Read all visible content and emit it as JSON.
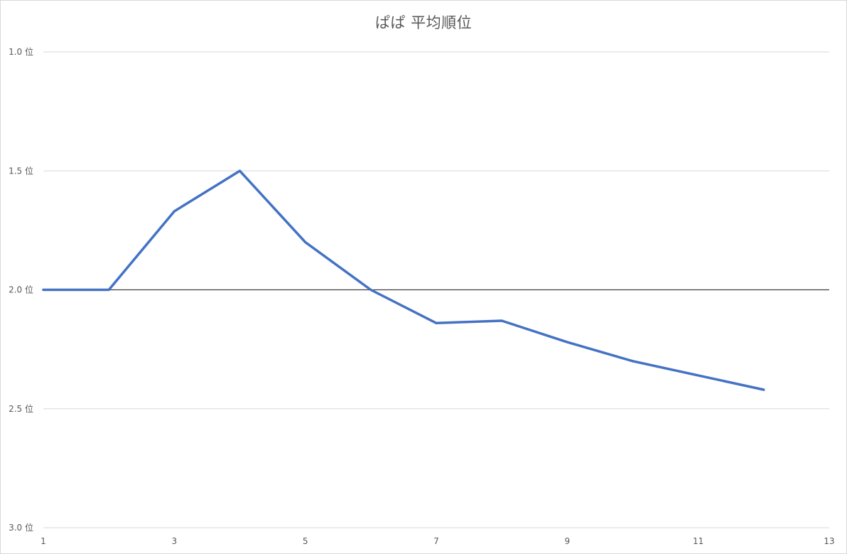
{
  "chart_data": {
    "type": "line",
    "title": "ぱぱ 平均順位",
    "xlabel": "",
    "ylabel": "",
    "xlim": [
      1,
      13
    ],
    "xticks": [
      "1",
      "3",
      "5",
      "7",
      "9",
      "11",
      "13"
    ],
    "ylim": [
      1.0,
      3.0
    ],
    "y_inverted": true,
    "yticks": [
      "1.0 位",
      "1.5 位",
      "2.0 位",
      "2.5 位",
      "3.0 位"
    ],
    "grid": true,
    "reference_line": 2.0,
    "legend": "none",
    "series": [
      {
        "color": "#4472c4",
        "x": [
          1,
          2,
          3,
          4,
          5,
          6,
          7,
          8,
          9,
          10,
          11,
          12
        ],
        "values": [
          2.0,
          2.0,
          1.67,
          1.5,
          1.8,
          2.0,
          2.14,
          2.13,
          2.22,
          2.3,
          2.36,
          2.42
        ]
      }
    ]
  }
}
